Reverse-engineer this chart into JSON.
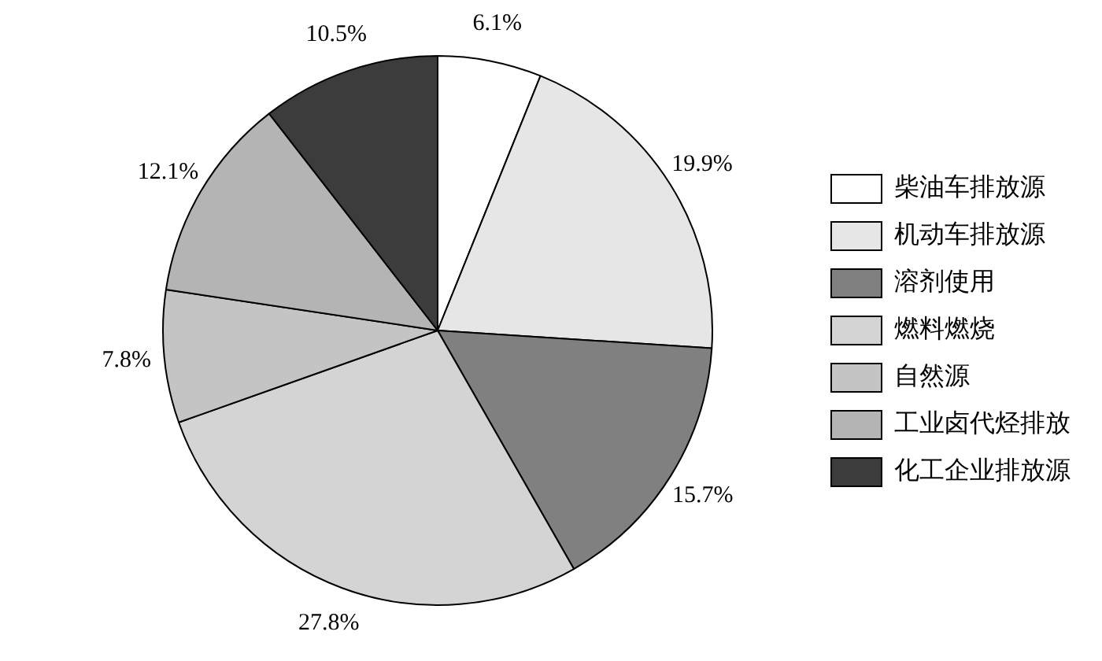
{
  "chart_data": {
    "type": "pie",
    "categories": [
      "柴油车排放源",
      "机动车排放源",
      "溶剂使用",
      "燃料燃烧",
      "自然源",
      "工业卤代烃排放",
      "化工企业排放源"
    ],
    "values": [
      6.1,
      19.9,
      15.7,
      27.8,
      7.8,
      12.1,
      10.5
    ],
    "colors": [
      "#ffffff",
      "#e6e6e6",
      "#808080",
      "#d4d4d4",
      "#c4c4c4",
      "#b4b4b4",
      "#3c3c3c"
    ],
    "value_labels": [
      "6.1%",
      "19.9%",
      "15.7%",
      "27.8%",
      "7.8%",
      "12.1%",
      "10.5%"
    ],
    "legend": "right"
  }
}
